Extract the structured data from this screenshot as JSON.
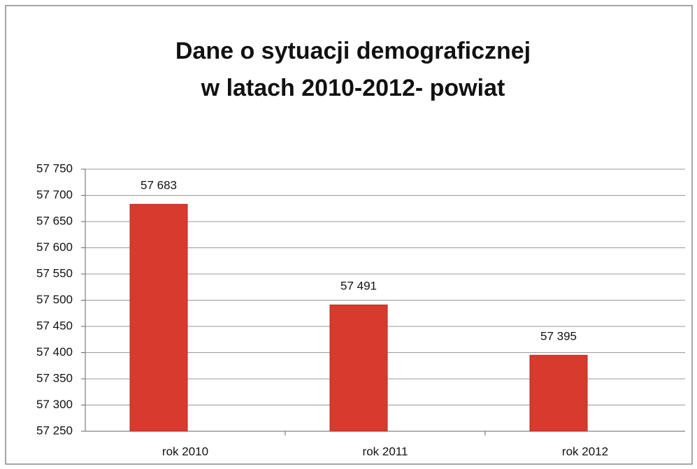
{
  "chart_data": {
    "type": "bar",
    "title": [
      "Dane o sytuacji demograficznej",
      "w latach 2010-2012- powiat"
    ],
    "categories": [
      "rok 2010",
      "rok 2011",
      "rok 2012"
    ],
    "values": [
      57683,
      57491,
      57395
    ],
    "value_labels": [
      "57 683",
      "57 491",
      "57 395"
    ],
    "color": "#d93a2e",
    "ylim": [
      57250,
      57750
    ],
    "yticks": [
      {
        "value": 57250,
        "label": "57 250"
      },
      {
        "value": 57300,
        "label": "57 300"
      },
      {
        "value": 57350,
        "label": "57 350"
      },
      {
        "value": 57400,
        "label": "57 400"
      },
      {
        "value": 57450,
        "label": "57 450"
      },
      {
        "value": 57500,
        "label": "57 500"
      },
      {
        "value": 57550,
        "label": "57 550"
      },
      {
        "value": 57600,
        "label": "57 600"
      },
      {
        "value": 57650,
        "label": "57 650"
      },
      {
        "value": 57700,
        "label": "57 700"
      },
      {
        "value": 57750,
        "label": "57 750"
      }
    ],
    "grid": true
  }
}
